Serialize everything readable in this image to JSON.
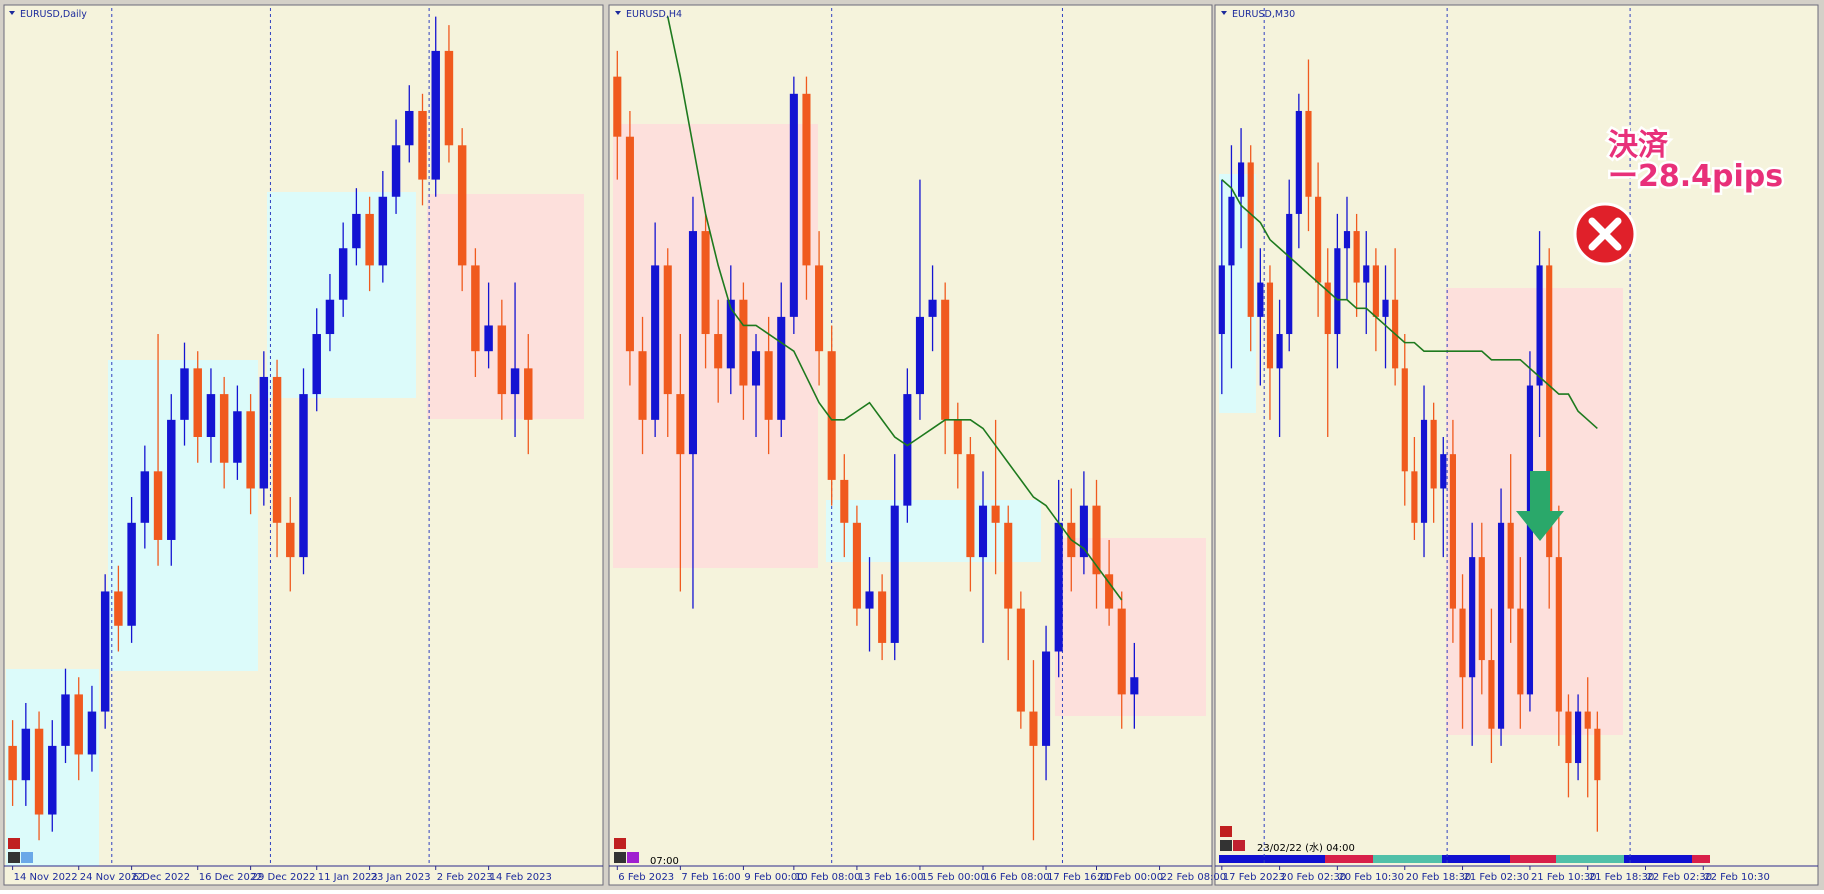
{
  "chart_data": [
    {
      "type": "candlestick",
      "title": "EURUSD,Daily",
      "up_color": "#1414d2",
      "down_color": "#f05a1e",
      "xlim": [
        -0.5,
        44.5
      ],
      "ylim": [
        0,
        100
      ],
      "xticks": [
        {
          "value": 0,
          "label": "14 Nov 2022"
        },
        {
          "value": 5,
          "label": "24 Nov 2022"
        },
        {
          "value": 9,
          "label": "6 Dec 2022"
        },
        {
          "value": 14,
          "label": "16 Dec 2022"
        },
        {
          "value": 18,
          "label": "29 Dec 2022"
        },
        {
          "value": 23,
          "label": "11 Jan 2023"
        },
        {
          "value": 27,
          "label": "23 Jan 2023"
        },
        {
          "value": 32,
          "label": "2 Feb 2023"
        },
        {
          "value": 36,
          "label": "14 Feb 2023"
        }
      ],
      "separators": [
        7.5,
        19.5,
        31.5
      ],
      "candles": [
        [
          14,
          17,
          7,
          10
        ],
        [
          10,
          19,
          7,
          16
        ],
        [
          16,
          18,
          3,
          6
        ],
        [
          6,
          17,
          4,
          14
        ],
        [
          14,
          23,
          12,
          20
        ],
        [
          20,
          22,
          10,
          13
        ],
        [
          13,
          21,
          11,
          18
        ],
        [
          18,
          34,
          16,
          32
        ],
        [
          32,
          35,
          25,
          28
        ],
        [
          28,
          43,
          26,
          40
        ],
        [
          40,
          49,
          37,
          46
        ],
        [
          46,
          62,
          35,
          38
        ],
        [
          38,
          55,
          35,
          52
        ],
        [
          52,
          61,
          49,
          58
        ],
        [
          58,
          60,
          47,
          50
        ],
        [
          50,
          58,
          47,
          55
        ],
        [
          55,
          57,
          44,
          47
        ],
        [
          47,
          56,
          45,
          53
        ],
        [
          53,
          55,
          41,
          44
        ],
        [
          44,
          60,
          42,
          57
        ],
        [
          57,
          59,
          36,
          40
        ],
        [
          40,
          43,
          32,
          36
        ],
        [
          36,
          58,
          34,
          55
        ],
        [
          55,
          65,
          53,
          62
        ],
        [
          62,
          69,
          60,
          66
        ],
        [
          66,
          75,
          64,
          72
        ],
        [
          72,
          79,
          70,
          76
        ],
        [
          76,
          78,
          67,
          70
        ],
        [
          70,
          81,
          68,
          78
        ],
        [
          78,
          87,
          76,
          84
        ],
        [
          84,
          91,
          82,
          88
        ],
        [
          88,
          90,
          77,
          80
        ],
        [
          80,
          99,
          78,
          95
        ],
        [
          95,
          98,
          82,
          84
        ],
        [
          84,
          86,
          67,
          70
        ],
        [
          70,
          72,
          57,
          60
        ],
        [
          60,
          68,
          58,
          63
        ],
        [
          63,
          66,
          52,
          55
        ],
        [
          55,
          68,
          50,
          58
        ],
        [
          58,
          62,
          48,
          52
        ]
      ]
    },
    {
      "type": "candlestick",
      "title": "EURUSD,H4",
      "up_color": "#1414d2",
      "down_color": "#f05a1e",
      "ma_color": "#1e7a1e",
      "xlim": [
        -0.5,
        47
      ],
      "ylim": [
        0,
        100
      ],
      "xticks": [
        {
          "value": 0,
          "label": "6 Feb 2023"
        },
        {
          "value": 5,
          "label": "7 Feb 16:00"
        },
        {
          "value": 10,
          "label": "9 Feb 00:00"
        },
        {
          "value": 14,
          "label": "10 Feb 08:00"
        },
        {
          "value": 19,
          "label": "13 Feb 16:00"
        },
        {
          "value": 24,
          "label": "15 Feb 00:00"
        },
        {
          "value": 29,
          "label": "16 Feb 08:00"
        },
        {
          "value": 34,
          "label": "17 Feb 16:00"
        },
        {
          "value": 38,
          "label": "21 Feb 00:00"
        },
        {
          "value": 43,
          "label": "22 Feb 08:00"
        }
      ],
      "separators": [
        17,
        35.3
      ],
      "cursor_label": "07:00",
      "candles": [
        [
          92,
          95,
          80,
          85
        ],
        [
          85,
          88,
          56,
          60
        ],
        [
          60,
          64,
          48,
          52
        ],
        [
          52,
          75,
          50,
          70
        ],
        [
          70,
          72,
          50,
          55
        ],
        [
          55,
          62,
          32,
          48
        ],
        [
          48,
          78,
          30,
          74
        ],
        [
          74,
          76,
          58,
          62
        ],
        [
          62,
          66,
          54,
          58
        ],
        [
          58,
          70,
          55,
          66
        ],
        [
          66,
          68,
          52,
          56
        ],
        [
          56,
          62,
          50,
          60
        ],
        [
          60,
          64,
          48,
          52
        ],
        [
          52,
          68,
          50,
          64
        ],
        [
          64,
          92,
          62,
          90
        ],
        [
          90,
          92,
          66,
          70
        ],
        [
          70,
          74,
          56,
          60
        ],
        [
          60,
          63,
          42,
          45
        ],
        [
          45,
          48,
          36,
          40
        ],
        [
          40,
          42,
          28,
          30
        ],
        [
          30,
          36,
          25,
          32
        ],
        [
          32,
          34,
          24,
          26
        ],
        [
          26,
          48,
          24,
          42
        ],
        [
          42,
          58,
          40,
          55
        ],
        [
          55,
          80,
          52,
          64
        ],
        [
          64,
          70,
          60,
          66
        ],
        [
          66,
          68,
          48,
          52
        ],
        [
          52,
          54,
          44,
          48
        ],
        [
          48,
          50,
          32,
          36
        ],
        [
          36,
          46,
          26,
          42
        ],
        [
          42,
          52,
          34,
          40
        ],
        [
          40,
          42,
          24,
          30
        ],
        [
          30,
          32,
          16,
          18
        ],
        [
          18,
          24,
          3,
          14
        ],
        [
          14,
          28,
          10,
          25
        ],
        [
          25,
          45,
          22,
          40
        ],
        [
          40,
          44,
          32,
          36
        ],
        [
          36,
          46,
          34,
          42
        ],
        [
          42,
          45,
          30,
          34
        ],
        [
          34,
          38,
          28,
          30
        ],
        [
          30,
          32,
          16,
          20
        ],
        [
          20,
          26,
          16,
          22
        ]
      ],
      "ma": [
        null,
        null,
        null,
        null,
        99,
        92,
        84,
        76,
        70,
        65,
        63,
        63,
        62,
        61,
        60,
        57,
        54,
        52,
        52,
        53,
        54,
        52,
        50,
        49,
        50,
        51,
        52,
        52,
        52,
        51,
        49,
        47,
        45,
        43,
        42,
        40,
        38,
        37,
        35,
        33,
        31,
        null
      ]
    },
    {
      "type": "candlestick",
      "title": "EURUSD,M30",
      "up_color": "#1414d2",
      "down_color": "#f05a1e",
      "ma_color": "#1e7a1e",
      "xlim": [
        -0.5,
        61.5
      ],
      "ylim": [
        0,
        100
      ],
      "xticks": [
        {
          "value": 0,
          "label": "17 Feb 2023"
        },
        {
          "value": 6,
          "label": "20 Feb 02:30"
        },
        {
          "value": 12,
          "label": "20 Feb 10:30"
        },
        {
          "value": 19,
          "label": "20 Feb 18:30"
        },
        {
          "value": 25,
          "label": "21 Feb 02:30"
        },
        {
          "value": 32,
          "label": "21 Feb 10:30"
        },
        {
          "value": 38,
          "label": "21 Feb 18:30"
        },
        {
          "value": 44,
          "label": "22 Feb 02:30"
        },
        {
          "value": 50,
          "label": "22 Feb 10:30"
        }
      ],
      "separators": [
        4.4,
        23.4,
        42.4
      ],
      "cursor_label": "23/02/22 (水) 04:00",
      "annotations": [
        "決済",
        "ー28.4pips"
      ],
      "candles": [
        [
          62,
          80,
          55,
          70
        ],
        [
          70,
          84,
          58,
          78
        ],
        [
          78,
          86,
          72,
          82
        ],
        [
          82,
          84,
          60,
          64
        ],
        [
          64,
          72,
          56,
          68
        ],
        [
          68,
          70,
          52,
          58
        ],
        [
          58,
          66,
          50,
          62
        ],
        [
          62,
          80,
          60,
          76
        ],
        [
          76,
          90,
          72,
          88
        ],
        [
          88,
          94,
          74,
          78
        ],
        [
          78,
          82,
          64,
          68
        ],
        [
          68,
          72,
          50,
          62
        ],
        [
          62,
          76,
          58,
          72
        ],
        [
          72,
          78,
          66,
          74
        ],
        [
          74,
          76,
          64,
          68
        ],
        [
          68,
          74,
          62,
          70
        ],
        [
          70,
          72,
          60,
          64
        ],
        [
          64,
          70,
          58,
          66
        ],
        [
          66,
          72,
          56,
          58
        ],
        [
          58,
          62,
          42,
          46
        ],
        [
          46,
          50,
          38,
          40
        ],
        [
          40,
          56,
          36,
          52
        ],
        [
          52,
          54,
          40,
          44
        ],
        [
          44,
          50,
          36,
          48
        ],
        [
          48,
          52,
          26,
          30
        ],
        [
          30,
          34,
          16,
          22
        ],
        [
          22,
          40,
          14,
          36
        ],
        [
          36,
          40,
          20,
          24
        ],
        [
          24,
          30,
          12,
          16
        ],
        [
          16,
          44,
          14,
          40
        ],
        [
          40,
          48,
          26,
          30
        ],
        [
          30,
          36,
          16,
          20
        ],
        [
          20,
          60,
          18,
          56
        ],
        [
          56,
          74,
          50,
          70
        ],
        [
          70,
          72,
          30,
          36
        ],
        [
          36,
          42,
          14,
          18
        ],
        [
          18,
          20,
          8,
          12
        ],
        [
          12,
          20,
          10,
          18
        ],
        [
          18,
          22,
          8,
          16
        ],
        [
          16,
          18,
          4,
          10
        ]
      ],
      "ma": [
        80,
        79,
        77,
        76,
        75,
        73,
        72,
        71,
        70,
        69,
        68,
        67,
        66,
        66,
        65,
        65,
        64,
        63,
        62,
        61,
        61,
        60,
        60,
        60,
        60,
        60,
        60,
        60,
        59,
        59,
        59,
        59,
        58,
        57,
        56,
        55,
        55,
        53,
        52,
        51
      ]
    }
  ]
}
